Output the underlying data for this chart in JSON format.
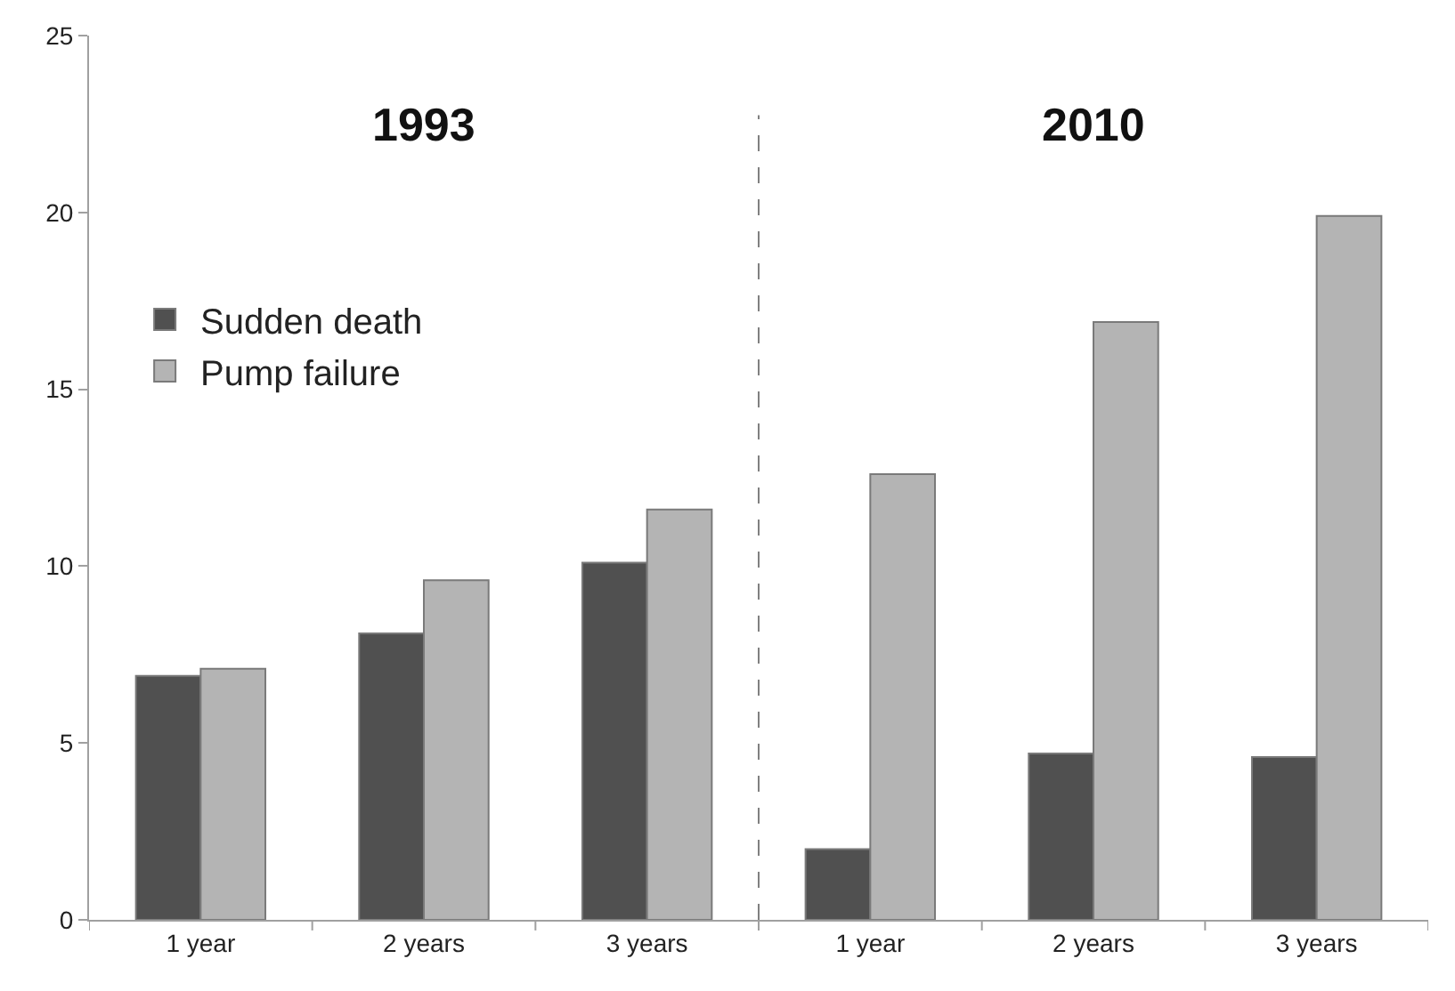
{
  "chart_data": {
    "type": "bar",
    "categories": [
      "1 year",
      "2 years",
      "3 years",
      "1 year",
      "2 years",
      "3 years"
    ],
    "series": [
      {
        "name": "Sudden death",
        "color": "#505050",
        "values": [
          6.9,
          8.1,
          10.1,
          2.0,
          4.7,
          4.6
        ]
      },
      {
        "name": "Pump failure",
        "color": "#b4b4b4",
        "values": [
          7.1,
          9.6,
          11.6,
          12.6,
          16.9,
          19.9
        ]
      }
    ],
    "annotations": [
      "1993",
      "2010"
    ],
    "ylim": [
      0,
      25
    ],
    "yticks": [
      0,
      5,
      10,
      15,
      20,
      25
    ],
    "legend": "center left"
  }
}
